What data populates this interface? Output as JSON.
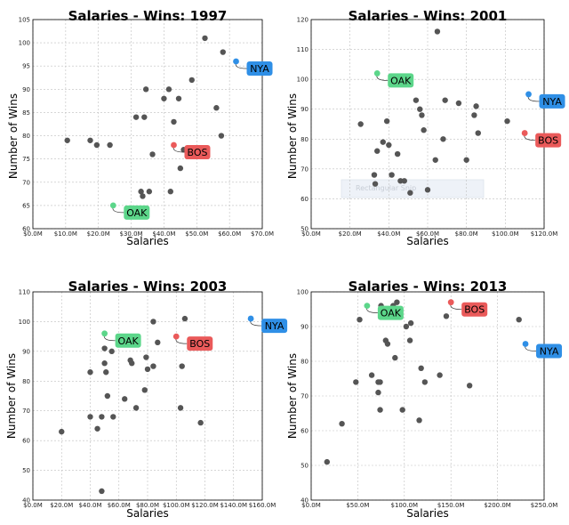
{
  "colors": {
    "OAK": "#5cd68a",
    "BOS": "#ea5a5a",
    "NYA": "#2f8fe6",
    "points": "#555555"
  },
  "watermark": "Rectangular Snip",
  "chart_data": [
    {
      "type": "scatter",
      "title": "Salaries - Wins: 1997",
      "xlabel": "Salaries",
      "ylabel": "Number of Wins",
      "xlim": [
        0,
        70
      ],
      "ylim": [
        60,
        105
      ],
      "xticks": [
        "$0.0M",
        "$10.0M",
        "$20.0M",
        "$30.0M",
        "$40.0M",
        "$50.0M",
        "$60.0M",
        "$70.0M"
      ],
      "yticks": [
        "60",
        "65",
        "70",
        "75",
        "80",
        "85",
        "90",
        "95",
        "100",
        "105"
      ],
      "points": [
        [
          10.5,
          79
        ],
        [
          17.5,
          79
        ],
        [
          19.5,
          78
        ],
        [
          23.5,
          78
        ],
        [
          31.5,
          84
        ],
        [
          34,
          84
        ],
        [
          34.5,
          90
        ],
        [
          33,
          68
        ],
        [
          33.5,
          67
        ],
        [
          35.5,
          68
        ],
        [
          36.5,
          76
        ],
        [
          40,
          88
        ],
        [
          41.5,
          90
        ],
        [
          42,
          68
        ],
        [
          43,
          83
        ],
        [
          44.5,
          88
        ],
        [
          45,
          73
        ],
        [
          46,
          77
        ],
        [
          48.5,
          92
        ],
        [
          52.5,
          101
        ],
        [
          56,
          86
        ],
        [
          57.5,
          80
        ],
        [
          58,
          98
        ]
      ],
      "highlights": [
        {
          "team": "OAK",
          "x": 24.5,
          "y": 65
        },
        {
          "team": "BOS",
          "x": 43,
          "y": 78
        },
        {
          "team": "NYA",
          "x": 62,
          "y": 96
        }
      ]
    },
    {
      "type": "scatter",
      "title": "Salaries - Wins: 2001",
      "xlabel": "Salaries",
      "ylabel": "Number of Wins",
      "xlim": [
        0,
        120
      ],
      "ylim": [
        50,
        120
      ],
      "xticks": [
        "$0.0M",
        "$20.0M",
        "$40.0M",
        "$60.0M",
        "$80.0M",
        "$100.0M",
        "$120.0M"
      ],
      "yticks": [
        "50",
        "60",
        "70",
        "80",
        "90",
        "100",
        "110",
        "120"
      ],
      "points": [
        [
          25.5,
          85
        ],
        [
          32.5,
          68
        ],
        [
          33,
          65
        ],
        [
          34,
          76
        ],
        [
          37,
          79
        ],
        [
          39,
          86
        ],
        [
          40,
          78
        ],
        [
          41.5,
          68
        ],
        [
          44.5,
          75
        ],
        [
          46,
          66
        ],
        [
          48,
          66
        ],
        [
          51,
          62
        ],
        [
          54,
          93
        ],
        [
          56,
          90
        ],
        [
          57,
          88
        ],
        [
          58,
          83
        ],
        [
          60,
          63
        ],
        [
          64,
          73
        ],
        [
          65,
          116
        ],
        [
          68,
          80
        ],
        [
          69,
          93
        ],
        [
          76,
          92
        ],
        [
          80,
          73
        ],
        [
          84,
          88
        ],
        [
          85,
          91
        ],
        [
          86,
          82
        ],
        [
          101,
          86
        ]
      ],
      "highlights": [
        {
          "team": "OAK",
          "x": 34,
          "y": 102
        },
        {
          "team": "BOS",
          "x": 110,
          "y": 82
        },
        {
          "team": "NYA",
          "x": 112,
          "y": 95
        }
      ]
    },
    {
      "type": "scatter",
      "title": "Salaries - Wins: 2003",
      "xlabel": "Salaries",
      "ylabel": "Number of Wins",
      "xlim": [
        0,
        160
      ],
      "ylim": [
        40,
        110
      ],
      "xticks": [
        "$0.0M",
        "$20.0M",
        "$40.0M",
        "$60.0M",
        "$80.0M",
        "$100.0M",
        "$120.0M",
        "$140.0M",
        "$160.0M"
      ],
      "yticks": [
        "40",
        "50",
        "60",
        "70",
        "80",
        "90",
        "100",
        "110"
      ],
      "points": [
        [
          20,
          63
        ],
        [
          40,
          83
        ],
        [
          40,
          68
        ],
        [
          45,
          64
        ],
        [
          48,
          68
        ],
        [
          48,
          43
        ],
        [
          50,
          91
        ],
        [
          50,
          86
        ],
        [
          51,
          83
        ],
        [
          52,
          75
        ],
        [
          56,
          68
        ],
        [
          55,
          90
        ],
        [
          64,
          74
        ],
        [
          68,
          87
        ],
        [
          69,
          86
        ],
        [
          72,
          71
        ],
        [
          78,
          77
        ],
        [
          79,
          88
        ],
        [
          80,
          84
        ],
        [
          84,
          85
        ],
        [
          84,
          100
        ],
        [
          87,
          93
        ],
        [
          103,
          71
        ],
        [
          104,
          85
        ],
        [
          106,
          101
        ],
        [
          117,
          66
        ]
      ],
      "highlights": [
        {
          "team": "OAK",
          "x": 50,
          "y": 96
        },
        {
          "team": "BOS",
          "x": 100,
          "y": 95
        },
        {
          "team": "NYA",
          "x": 152,
          "y": 101
        }
      ]
    },
    {
      "type": "scatter",
      "title": "Salaries - Wins: 2013",
      "xlabel": "Salaries",
      "ylabel": "Number of Wins",
      "xlim": [
        0,
        250
      ],
      "ylim": [
        40,
        100
      ],
      "xticks": [
        "$0.0M",
        "$50.0M",
        "$100.0M",
        "$150.0M",
        "$200.0M",
        "$250.0M"
      ],
      "yticks": [
        "40",
        "50",
        "60",
        "70",
        "80",
        "90",
        "100"
      ],
      "points": [
        [
          17,
          51
        ],
        [
          33,
          62
        ],
        [
          48,
          74
        ],
        [
          52,
          92
        ],
        [
          65,
          76
        ],
        [
          72,
          71
        ],
        [
          72,
          74
        ],
        [
          74,
          74
        ],
        [
          74,
          66
        ],
        [
          75,
          96
        ],
        [
          80,
          86
        ],
        [
          82,
          85
        ],
        [
          88,
          96
        ],
        [
          90,
          81
        ],
        [
          92,
          97
        ],
        [
          98,
          66
        ],
        [
          102,
          90
        ],
        [
          106,
          86
        ],
        [
          107,
          91
        ],
        [
          116,
          63
        ],
        [
          118,
          78
        ],
        [
          122,
          74
        ],
        [
          138,
          76
        ],
        [
          145,
          93
        ],
        [
          170,
          73
        ],
        [
          223,
          92
        ]
      ],
      "highlights": [
        {
          "team": "OAK",
          "x": 60,
          "y": 96
        },
        {
          "team": "BOS",
          "x": 150,
          "y": 97
        },
        {
          "team": "NYA",
          "x": 230,
          "y": 85
        }
      ]
    }
  ]
}
